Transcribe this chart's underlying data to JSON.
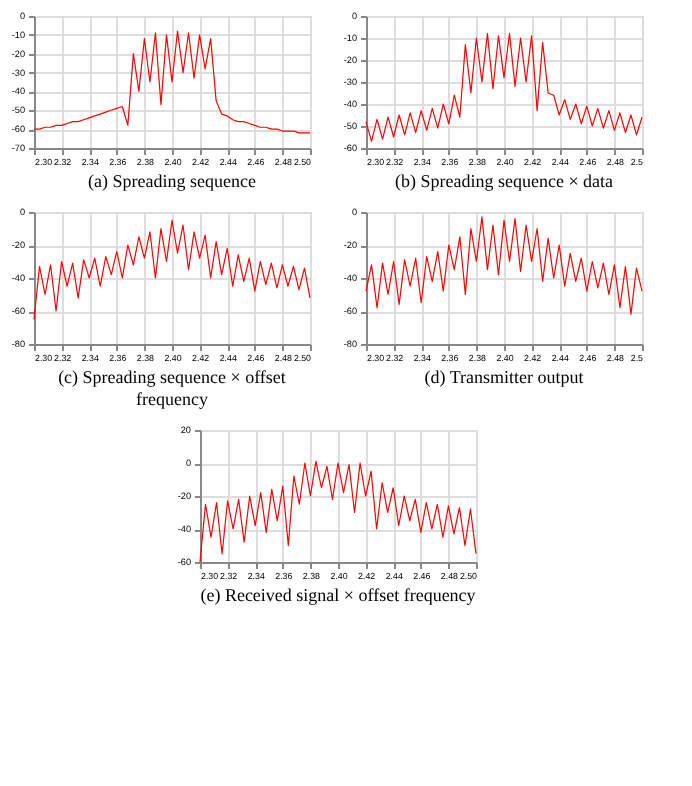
{
  "chart_data": [
    {
      "type": "line",
      "title": "(a) Spreading sequence",
      "grid": true,
      "line_style": "solid",
      "xlim": [
        2.3,
        2.5
      ],
      "ylim": [
        -70,
        0
      ],
      "xticks": [
        {
          "value": 2.3,
          "label": "2.30"
        },
        2.32,
        2.34,
        2.36,
        2.38,
        {
          "value": 2.4,
          "label": "2.40"
        },
        2.42,
        2.44,
        2.46,
        2.48,
        {
          "value": 2.5,
          "label": "2.50"
        }
      ],
      "yticks": [
        0,
        -10,
        -20,
        -30,
        -40,
        -50,
        -60,
        -70
      ],
      "x": [
        2.3,
        2.304,
        2.308,
        2.312,
        2.316,
        2.32,
        2.324,
        2.328,
        2.332,
        2.336,
        2.34,
        2.344,
        2.348,
        2.352,
        2.356,
        2.36,
        2.364,
        2.368,
        2.372,
        2.376,
        2.38,
        2.384,
        2.388,
        2.392,
        2.396,
        2.4,
        2.404,
        2.408,
        2.412,
        2.416,
        2.42,
        2.424,
        2.428,
        2.432,
        2.436,
        2.44,
        2.444,
        2.448,
        2.452,
        2.456,
        2.46,
        2.464,
        2.468,
        2.472,
        2.476,
        2.48,
        2.484,
        2.488,
        2.492,
        2.496,
        2.5
      ],
      "series": [
        {
          "color": "#ff0000",
          "values": [
            -60,
            -60,
            -59,
            -59,
            -58,
            -58,
            -57,
            -56,
            -56,
            -55,
            -54,
            -53,
            -52,
            -51,
            -50,
            -49,
            -48,
            -58,
            -20,
            -40,
            -12,
            -35,
            -9,
            -47,
            -10,
            -35,
            -8,
            -30,
            -9,
            -33,
            -10,
            -28,
            -12,
            -45,
            -52,
            -53,
            -55,
            -56,
            -56,
            -57,
            -58,
            -59,
            -59,
            -60,
            -60,
            -61,
            -61,
            -61,
            -62,
            -62,
            -62
          ]
        }
      ]
    },
    {
      "type": "line",
      "title": "(b) Spreading sequence × data",
      "grid": true,
      "line_style": "solid",
      "xlim": [
        2.3,
        2.5
      ],
      "ylim": [
        -60,
        0
      ],
      "xticks": [
        {
          "value": 2.3,
          "label": "2.30"
        },
        2.32,
        2.34,
        2.36,
        2.38,
        {
          "value": 2.4,
          "label": "2.40"
        },
        2.42,
        2.44,
        2.46,
        2.48,
        2.5
      ],
      "yticks": [
        0,
        -10,
        -20,
        -30,
        -40,
        -50,
        -60
      ],
      "x": [
        2.3,
        2.304,
        2.308,
        2.312,
        2.316,
        2.32,
        2.324,
        2.328,
        2.332,
        2.336,
        2.34,
        2.344,
        2.348,
        2.352,
        2.356,
        2.36,
        2.364,
        2.368,
        2.372,
        2.376,
        2.38,
        2.384,
        2.388,
        2.392,
        2.396,
        2.4,
        2.404,
        2.408,
        2.412,
        2.416,
        2.42,
        2.424,
        2.428,
        2.432,
        2.436,
        2.44,
        2.444,
        2.448,
        2.452,
        2.456,
        2.46,
        2.464,
        2.468,
        2.472,
        2.476,
        2.48,
        2.484,
        2.488,
        2.492,
        2.496,
        2.5
      ],
      "series": [
        {
          "color": "#ff0000",
          "values": [
            -48,
            -57,
            -47,
            -56,
            -46,
            -55,
            -45,
            -54,
            -44,
            -53,
            -43,
            -52,
            -42,
            -51,
            -40,
            -49,
            -36,
            -46,
            -13,
            -35,
            -10,
            -30,
            -8,
            -33,
            -9,
            -28,
            -8,
            -32,
            -10,
            -30,
            -9,
            -43,
            -12,
            -35,
            -36,
            -45,
            -38,
            -47,
            -40,
            -49,
            -41,
            -50,
            -42,
            -51,
            -43,
            -52,
            -44,
            -53,
            -45,
            -54,
            -46
          ]
        }
      ]
    },
    {
      "type": "line",
      "title": "(c) Spreading sequence × offset frequency",
      "grid": true,
      "line_style": "solid",
      "xlim": [
        2.3,
        2.5
      ],
      "ylim": [
        -80,
        0
      ],
      "xticks": [
        {
          "value": 2.3,
          "label": "2.30"
        },
        2.32,
        2.34,
        2.36,
        2.38,
        {
          "value": 2.4,
          "label": "2.40"
        },
        2.42,
        2.44,
        2.46,
        2.48,
        {
          "value": 2.5,
          "label": "2.50"
        }
      ],
      "yticks": [
        0,
        -20,
        -40,
        -60,
        -80
      ],
      "x": [
        2.3,
        2.304,
        2.308,
        2.312,
        2.316,
        2.32,
        2.324,
        2.328,
        2.332,
        2.336,
        2.34,
        2.344,
        2.348,
        2.352,
        2.356,
        2.36,
        2.364,
        2.368,
        2.372,
        2.376,
        2.38,
        2.384,
        2.388,
        2.392,
        2.396,
        2.4,
        2.404,
        2.408,
        2.412,
        2.416,
        2.42,
        2.424,
        2.428,
        2.432,
        2.436,
        2.44,
        2.444,
        2.448,
        2.452,
        2.456,
        2.46,
        2.464,
        2.468,
        2.472,
        2.476,
        2.48,
        2.484,
        2.488,
        2.492,
        2.496,
        2.5
      ],
      "series": [
        {
          "color": "#ff0000",
          "values": [
            -65,
            -33,
            -50,
            -32,
            -60,
            -30,
            -45,
            -31,
            -52,
            -29,
            -40,
            -28,
            -45,
            -27,
            -38,
            -24,
            -40,
            -20,
            -32,
            -15,
            -28,
            -12,
            -40,
            -10,
            -30,
            -5,
            -25,
            -8,
            -35,
            -12,
            -28,
            -14,
            -40,
            -18,
            -38,
            -22,
            -45,
            -26,
            -42,
            -28,
            -48,
            -30,
            -44,
            -31,
            -46,
            -32,
            -45,
            -33,
            -47,
            -34,
            -52
          ]
        }
      ]
    },
    {
      "type": "line",
      "title": "(d) Transmitter output",
      "grid": true,
      "line_style": "solid",
      "xlim": [
        2.3,
        2.5
      ],
      "ylim": [
        -80,
        0
      ],
      "xticks": [
        {
          "value": 2.3,
          "label": "2.30"
        },
        2.32,
        2.34,
        2.36,
        2.38,
        {
          "value": 2.4,
          "label": "2.40"
        },
        2.42,
        2.44,
        2.46,
        2.48,
        2.5
      ],
      "yticks": [
        0,
        -20,
        -40,
        -60,
        -80
      ],
      "x": [
        2.3,
        2.304,
        2.308,
        2.312,
        2.316,
        2.32,
        2.324,
        2.328,
        2.332,
        2.336,
        2.34,
        2.344,
        2.348,
        2.352,
        2.356,
        2.36,
        2.364,
        2.368,
        2.372,
        2.376,
        2.38,
        2.384,
        2.388,
        2.392,
        2.396,
        2.4,
        2.404,
        2.408,
        2.412,
        2.416,
        2.42,
        2.424,
        2.428,
        2.432,
        2.436,
        2.44,
        2.444,
        2.448,
        2.452,
        2.456,
        2.46,
        2.464,
        2.468,
        2.472,
        2.476,
        2.48,
        2.484,
        2.488,
        2.492,
        2.496,
        2.5
      ],
      "series": [
        {
          "color": "#ff0000",
          "values": [
            -48,
            -32,
            -58,
            -31,
            -50,
            -30,
            -56,
            -29,
            -45,
            -28,
            -55,
            -27,
            -42,
            -24,
            -48,
            -20,
            -35,
            -15,
            -50,
            -10,
            -30,
            -3,
            -35,
            -8,
            -38,
            -5,
            -30,
            -4,
            -36,
            -8,
            -30,
            -10,
            -42,
            -16,
            -40,
            -20,
            -45,
            -25,
            -42,
            -28,
            -48,
            -30,
            -46,
            -31,
            -50,
            -32,
            -58,
            -33,
            -62,
            -34,
            -48
          ]
        }
      ]
    },
    {
      "type": "line",
      "title": "(e) Received signal × offset frequency",
      "grid": true,
      "line_style": "solid",
      "xlim": [
        2.3,
        2.5
      ],
      "ylim": [
        -60,
        20
      ],
      "xticks": [
        {
          "value": 2.3,
          "label": "2.30"
        },
        2.32,
        2.34,
        2.36,
        2.38,
        {
          "value": 2.4,
          "label": "2.40"
        },
        2.42,
        2.44,
        2.46,
        2.48,
        {
          "value": 2.5,
          "label": "2.50"
        }
      ],
      "yticks": [
        20,
        0,
        -20,
        -40,
        -60
      ],
      "x": [
        2.3,
        2.304,
        2.308,
        2.312,
        2.316,
        2.32,
        2.324,
        2.328,
        2.332,
        2.336,
        2.34,
        2.344,
        2.348,
        2.352,
        2.356,
        2.36,
        2.364,
        2.368,
        2.372,
        2.376,
        2.38,
        2.384,
        2.388,
        2.392,
        2.396,
        2.4,
        2.404,
        2.408,
        2.412,
        2.416,
        2.42,
        2.424,
        2.428,
        2.432,
        2.436,
        2.44,
        2.444,
        2.448,
        2.452,
        2.456,
        2.46,
        2.464,
        2.468,
        2.472,
        2.476,
        2.48,
        2.484,
        2.488,
        2.492,
        2.496,
        2.5
      ],
      "series": [
        {
          "color": "#ff0000",
          "values": [
            -60,
            -25,
            -45,
            -24,
            -55,
            -23,
            -40,
            -22,
            -48,
            -20,
            -38,
            -18,
            -42,
            -16,
            -35,
            -14,
            -50,
            -8,
            -25,
            0,
            -20,
            1,
            -15,
            -2,
            -22,
            0,
            -18,
            -1,
            -30,
            0,
            -20,
            -5,
            -40,
            -12,
            -30,
            -15,
            -38,
            -20,
            -35,
            -22,
            -42,
            -24,
            -40,
            -25,
            -45,
            -26,
            -43,
            -27,
            -50,
            -28,
            -55
          ]
        }
      ]
    }
  ]
}
